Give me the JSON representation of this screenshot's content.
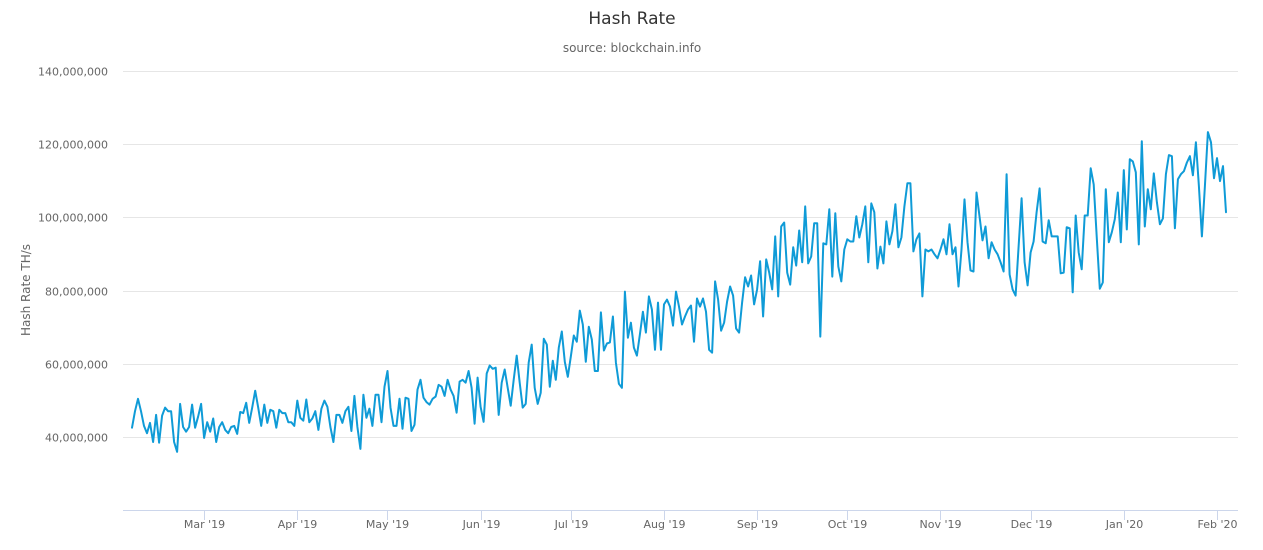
{
  "chart_data": {
    "type": "line",
    "title": "Hash Rate",
    "subtitle": "source: blockchain.info",
    "ylabel": "Hash Rate TH/s",
    "xlabel": "",
    "ylim": [
      20000000,
      140000000
    ],
    "yticks": [
      40000000,
      60000000,
      80000000,
      100000000,
      120000000,
      140000000
    ],
    "ytick_labels": [
      "40,000,000",
      "60,000,000",
      "80,000,000",
      "100,000,000",
      "120,000,000",
      "140,000,000"
    ],
    "xlim": [
      "2019-02-02",
      "2020-02-08"
    ],
    "xticks": [
      "2019-03-01",
      "2019-04-01",
      "2019-05-01",
      "2019-06-01",
      "2019-07-01",
      "2019-08-01",
      "2019-09-01",
      "2019-10-01",
      "2019-11-01",
      "2019-12-01",
      "2020-01-01",
      "2020-02-01"
    ],
    "xtick_labels": [
      "Mar '19",
      "Apr '19",
      "May '19",
      "Jun '19",
      "Jul '19",
      "Aug '19",
      "Sep '19",
      "Oct '19",
      "Nov '19",
      "Dec '19",
      "Jan '20",
      "Feb '20"
    ],
    "grid": true,
    "legend": "none",
    "color": "#0f9bd7",
    "x_start": "2019-02-05",
    "x_step_days": 1,
    "values": [
      42500000.0,
      47000000.0,
      50400000.0,
      47000000.0,
      43000000.0,
      41000000.0,
      43800000.0,
      38600000.0,
      46000000.0,
      38400000.0,
      45800000.0,
      48000000.0,
      47000000.0,
      47000000.0,
      38600000.0,
      35900000.0,
      49000000.0,
      42700000.0,
      41400000.0,
      42700000.0,
      48800000.0,
      42500000.0,
      45500000.0,
      49000000.0,
      39700000.0,
      44000000.0,
      41400000.0,
      45000000.0,
      38600000.0,
      42700000.0,
      44000000.0,
      41900000.0,
      41000000.0,
      42700000.0,
      43000000.0,
      40800000.0,
      46800000.0,
      46500000.0,
      49300000.0,
      43800000.0,
      48000000.0,
      52600000.0,
      48000000.0,
      43000000.0,
      48800000.0,
      43800000.0,
      47400000.0,
      47000000.0,
      42500000.0,
      47400000.0,
      46500000.0,
      46500000.0,
      44000000.0,
      44000000.0,
      43000000.0,
      49900000.0,
      45200000.0,
      44400000.0,
      50200000.0,
      44000000.0,
      45000000.0,
      47000000.0,
      41900000.0,
      47700000.0,
      49900000.0,
      48200000.0,
      42700000.0,
      38600000.0,
      46000000.0,
      46000000.0,
      43800000.0,
      47000000.0,
      48200000.0,
      41600000.0,
      51200000.0,
      42700000.0,
      36700000.0,
      51500000.0,
      45200000.0,
      47700000.0,
      43000000.0,
      51500000.0,
      51500000.0,
      44000000.0,
      53700000.0,
      58000000.0,
      48000000.0,
      43000000.0,
      43000000.0,
      50400000.0,
      42200000.0,
      50700000.0,
      50400000.0,
      41600000.0,
      43300000.0,
      52900000.0,
      55600000.0,
      50700000.0,
      49500000.0,
      48800000.0,
      50400000.0,
      51000000.0,
      54200000.0,
      53700000.0,
      51200000.0,
      55600000.0,
      52900000.0,
      51200000.0,
      46600000.0,
      55100000.0,
      55600000.0,
      54800000.0,
      58000000.0,
      53400000.0,
      43600000.0,
      56200000.0,
      48200000.0,
      44100000.0,
      57300000.0,
      59500000.0,
      58600000.0,
      58900000.0,
      46000000.0,
      54800000.0,
      58400000.0,
      53400000.0,
      48500000.0,
      55600000.0,
      62200000.0,
      54800000.0,
      48000000.0,
      49000000.0,
      60300000.0,
      65200000.0,
      53400000.0,
      49000000.0,
      52000000.0,
      66800000.0,
      65200000.0,
      53700000.0,
      60800000.0,
      55600000.0,
      64400000.0,
      68800000.0,
      60500000.0,
      56400000.0,
      61900000.0,
      67700000.0,
      66000000.0,
      74500000.0,
      70700000.0,
      60500000.0,
      70100000.0,
      66600000.0,
      58000000.0,
      58000000.0,
      74000000.0,
      63600000.0,
      65500000.0,
      65800000.0,
      72900000.0,
      60300000.0,
      54500000.0,
      53400000.0,
      79700000.0,
      67100000.0,
      71200000.0,
      64400000.0,
      62200000.0,
      68000000.0,
      74200000.0,
      68500000.0,
      78400000.0,
      74800000.0,
      63800000.0,
      76700000.0,
      63800000.0,
      76200000.0,
      77500000.0,
      75600000.0,
      70400000.0,
      79700000.0,
      75600000.0,
      70700000.0,
      72900000.0,
      74800000.0,
      75900000.0,
      66000000.0,
      77800000.0,
      75600000.0,
      77800000.0,
      74200000.0,
      63800000.0,
      63000000.0,
      82500000.0,
      77500000.0,
      69000000.0,
      71200000.0,
      77000000.0,
      81100000.0,
      78600000.0,
      69600000.0,
      68500000.0,
      76700000.0,
      83600000.0,
      81100000.0,
      84100000.0,
      76200000.0,
      80300000.0,
      88000000.0,
      72900000.0,
      88500000.0,
      84900000.0,
      80300000.0,
      94800000.0,
      78400000.0,
      97500000.0,
      98600000.0,
      84900000.0,
      81600000.0,
      91800000.0,
      86800000.0,
      96400000.0,
      87700000.0,
      103000000.0,
      87400000.0,
      89300000.0,
      98400000.0,
      98400000.0,
      67400000.0,
      92900000.0,
      92600000.0,
      102200000.0,
      83800000.0,
      101100000.0,
      86600000.0,
      82500000.0,
      91200000.0,
      94000000.0,
      93400000.0,
      93400000.0,
      100300000.0,
      94500000.0,
      98100000.0,
      103000000.0,
      87700000.0,
      103800000.0,
      101400000.0,
      86000000.0,
      92000000.0,
      87400000.0,
      98900000.0,
      92600000.0,
      96200000.0,
      103600000.0,
      91800000.0,
      94500000.0,
      103000000.0,
      109300000.0,
      109300000.0,
      90700000.0,
      94000000.0,
      95600000.0,
      78400000.0,
      91200000.0,
      90700000.0,
      91200000.0,
      89900000.0,
      88800000.0,
      91200000.0,
      94000000.0,
      89900000.0,
      98100000.0,
      89900000.0,
      91800000.0,
      81100000.0,
      91200000.0,
      104900000.0,
      93200000.0,
      85500000.0,
      85200000.0,
      106800000.0,
      100300000.0,
      93700000.0,
      97500000.0,
      88800000.0,
      93200000.0,
      91200000.0,
      89900000.0,
      87700000.0,
      85200000.0,
      111800000.0,
      84400000.0,
      80300000.0,
      78600000.0,
      92000000.0,
      105200000.0,
      87700000.0,
      81400000.0,
      90400000.0,
      93400000.0,
      101400000.0,
      107900000.0,
      93400000.0,
      92900000.0,
      99200000.0,
      94800000.0,
      94800000.0,
      94800000.0,
      84700000.0,
      84900000.0,
      97300000.0,
      97000000.0,
      79500000.0,
      100500000.0,
      90400000.0,
      85800000.0,
      100500000.0,
      100500000.0,
      113400000.0,
      109000000.0,
      94800000.0,
      80500000.0,
      82200000.0,
      107700000.0,
      93200000.0,
      95900000.0,
      99500000.0,
      106800000.0,
      93200000.0,
      112900000.0,
      96700000.0,
      115900000.0,
      115300000.0,
      112300000.0,
      92600000.0,
      120800000.0,
      97500000.0,
      107700000.0,
      102200000.0,
      112000000.0,
      104100000.0,
      98100000.0,
      99700000.0,
      111800000.0,
      117000000.0,
      116700000.0,
      97000000.0,
      110400000.0,
      111800000.0,
      112600000.0,
      115000000.0,
      116700000.0,
      111500000.0,
      120500000.0,
      108500000.0,
      94800000.0,
      108500000.0,
      123300000.0,
      120500000.0,
      110700000.0,
      116200000.0,
      109900000.0,
      114000000.0,
      101400000.0
    ]
  }
}
